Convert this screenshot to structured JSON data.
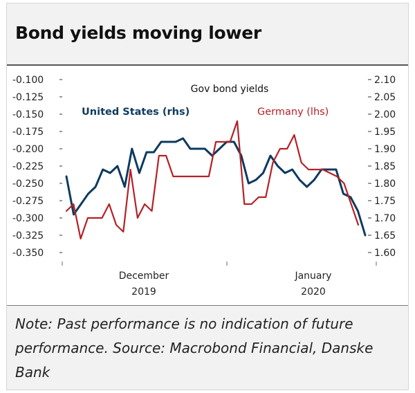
{
  "title": "Bond yields moving lower",
  "note": "Note: Past performance is no indication of future performance.  Source: Macrobond Financial, Danske Bank",
  "chart_data": {
    "type": "line",
    "title": "Gov bond yields",
    "left_axis": {
      "ylim": [
        -0.35,
        -0.1
      ],
      "ticks": [
        "-0.100",
        "-0.125",
        "-0.150",
        "-0.175",
        "-0.200",
        "-0.225",
        "-0.250",
        "-0.275",
        "-0.300",
        "-0.325",
        "-0.350"
      ]
    },
    "right_axis": {
      "ylim": [
        1.6,
        2.1
      ],
      "ticks": [
        "2.10",
        "2.05",
        "2.00",
        "1.95",
        "1.90",
        "1.85",
        "1.80",
        "1.75",
        "1.70",
        "1.65",
        "1.60"
      ]
    },
    "x_labels": [
      {
        "month": "December",
        "year": "2019"
      },
      {
        "month": "January",
        "year": "2020"
      }
    ],
    "series": [
      {
        "name": "United States (rhs)",
        "axis": "right",
        "color": "#0e3a5e",
        "values": [
          1.82,
          1.71,
          1.74,
          1.77,
          1.79,
          1.84,
          1.83,
          1.85,
          1.79,
          1.9,
          1.83,
          1.89,
          1.89,
          1.92,
          1.92,
          1.92,
          1.93,
          1.9,
          1.9,
          1.9,
          1.88,
          1.9,
          1.92,
          1.92,
          1.88,
          1.8,
          1.81,
          1.83,
          1.88,
          1.85,
          1.83,
          1.84,
          1.81,
          1.79,
          1.81,
          1.84,
          1.84,
          1.84,
          1.77,
          1.76,
          1.72,
          1.65
        ]
      },
      {
        "name": "Germany (lhs)",
        "axis": "left",
        "color": "#b52025",
        "values": [
          -0.29,
          -0.28,
          -0.33,
          -0.3,
          -0.3,
          -0.3,
          -0.28,
          -0.31,
          -0.32,
          -0.23,
          -0.3,
          -0.28,
          -0.29,
          -0.21,
          -0.21,
          -0.24,
          -0.24,
          -0.24,
          -0.24,
          -0.24,
          -0.24,
          -0.19,
          -0.19,
          -0.19,
          -0.16,
          -0.28,
          -0.28,
          -0.27,
          -0.27,
          -0.22,
          -0.2,
          -0.2,
          -0.18,
          -0.22,
          -0.23,
          -0.23,
          -0.23,
          -0.235,
          -0.24,
          -0.25,
          -0.28,
          -0.31
        ]
      }
    ]
  }
}
